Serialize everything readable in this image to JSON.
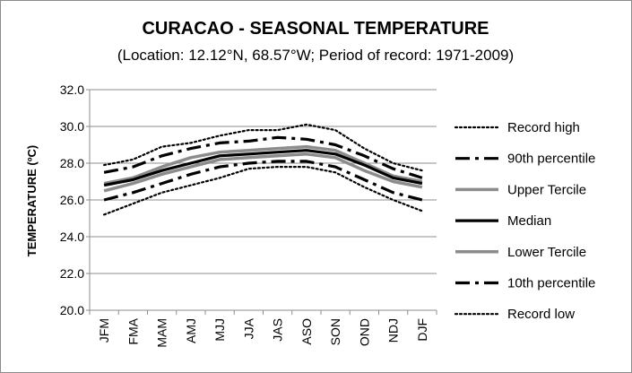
{
  "chart_data": {
    "type": "line",
    "title": "CURACAO - SEASONAL TEMPERATURE",
    "subtitle": "(Location: 12.12°N, 68.57°W; Period of record: 1971-2009)",
    "xlabel": "",
    "ylabel": "TEMPERATURE (ºC)",
    "ylim": [
      20.0,
      32.0
    ],
    "yticks": [
      "20.0",
      "22.0",
      "24.0",
      "26.0",
      "28.0",
      "30.0",
      "32.0"
    ],
    "grid": true,
    "legend_position": "right",
    "categories": [
      "JFM",
      "FMA",
      "MAM",
      "AMJ",
      "MJJ",
      "JJA",
      "JAS",
      "ASO",
      "SON",
      "OND",
      "NDJ",
      "DJF"
    ],
    "series": [
      {
        "name": "Record high",
        "style": "dotted",
        "color": "#000000",
        "values": [
          27.9,
          28.2,
          28.9,
          29.1,
          29.5,
          29.8,
          29.8,
          30.1,
          29.8,
          28.8,
          28.0,
          27.6
        ]
      },
      {
        "name": "90th percentile",
        "style": "dashdot",
        "color": "#000000",
        "values": [
          27.5,
          27.8,
          28.4,
          28.8,
          29.1,
          29.2,
          29.4,
          29.3,
          29.0,
          28.4,
          27.7,
          27.2
        ]
      },
      {
        "name": "Upper Tercile",
        "style": "solid-gray",
        "color": "#8c8c8c",
        "values": [
          26.9,
          27.2,
          27.8,
          28.3,
          28.6,
          28.7,
          28.8,
          28.9,
          28.7,
          28.0,
          27.3,
          27.0
        ]
      },
      {
        "name": "Median",
        "style": "solid",
        "color": "#000000",
        "values": [
          26.8,
          27.1,
          27.6,
          28.0,
          28.4,
          28.5,
          28.6,
          28.7,
          28.5,
          27.9,
          27.2,
          26.9
        ]
      },
      {
        "name": "Lower Tercile",
        "style": "solid-gray",
        "color": "#8c8c8c",
        "values": [
          26.5,
          26.9,
          27.4,
          27.8,
          28.2,
          28.3,
          28.4,
          28.5,
          28.3,
          27.6,
          27.0,
          26.7
        ]
      },
      {
        "name": "10th percentile",
        "style": "dashdot",
        "color": "#000000",
        "values": [
          26.0,
          26.4,
          26.9,
          27.4,
          27.8,
          28.0,
          28.1,
          28.1,
          27.8,
          27.1,
          26.4,
          26.0
        ]
      },
      {
        "name": "Record low",
        "style": "dotted",
        "color": "#000000",
        "values": [
          25.2,
          25.8,
          26.4,
          26.8,
          27.2,
          27.7,
          27.8,
          27.8,
          27.5,
          26.7,
          26.0,
          25.4
        ]
      }
    ]
  }
}
